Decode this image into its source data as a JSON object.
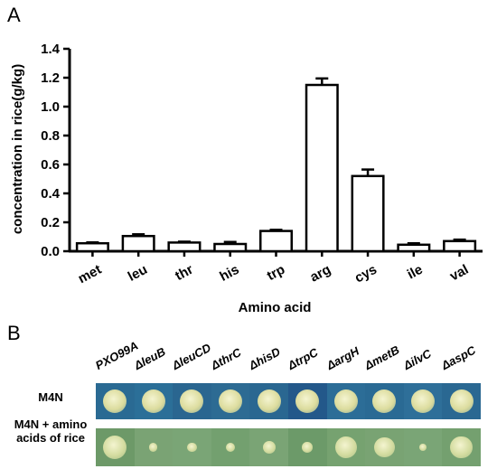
{
  "panel_a_label": "A",
  "panel_b_label": "B",
  "chart_data": {
    "type": "bar",
    "title": "",
    "xlabel": "Amino acid",
    "ylabel": "concentration in rice(g/kg)",
    "categories": [
      "met",
      "leu",
      "thr",
      "his",
      "trp",
      "arg",
      "cys",
      "ile",
      "val"
    ],
    "values": [
      0.055,
      0.105,
      0.06,
      0.05,
      0.14,
      1.15,
      0.52,
      0.045,
      0.07
    ],
    "errors": [
      0.006,
      0.012,
      0.006,
      0.014,
      0.008,
      0.045,
      0.045,
      0.01,
      0.01
    ],
    "ylim": [
      0,
      1.4
    ],
    "yticks": [
      "0.0",
      "0.2",
      "0.4",
      "0.6",
      "0.8",
      "1.0",
      "1.2",
      "1.4"
    ],
    "grid": false,
    "legend": "none"
  },
  "plates": {
    "strains": [
      "PXO99A",
      "ΔleuB",
      "ΔleuCD",
      "ΔthrC",
      "ΔhisD",
      "ΔtrpC",
      "ΔargH",
      "ΔmetB",
      "ΔilvC",
      "ΔaspC"
    ],
    "row1_label": "M4N",
    "row2_label": "M4N + amino acids of rice",
    "row1_colony": "large",
    "row2_colony_growth": [
      1.0,
      0.35,
      0.4,
      0.4,
      0.55,
      0.45,
      0.95,
      0.85,
      0.3,
      0.95
    ],
    "colors": {
      "m4n_background": "#1f5a85",
      "m4n_colony": "#dcdc9e",
      "rice_background": "#6f9a6a",
      "rice_colony": "#d4dca0"
    }
  }
}
